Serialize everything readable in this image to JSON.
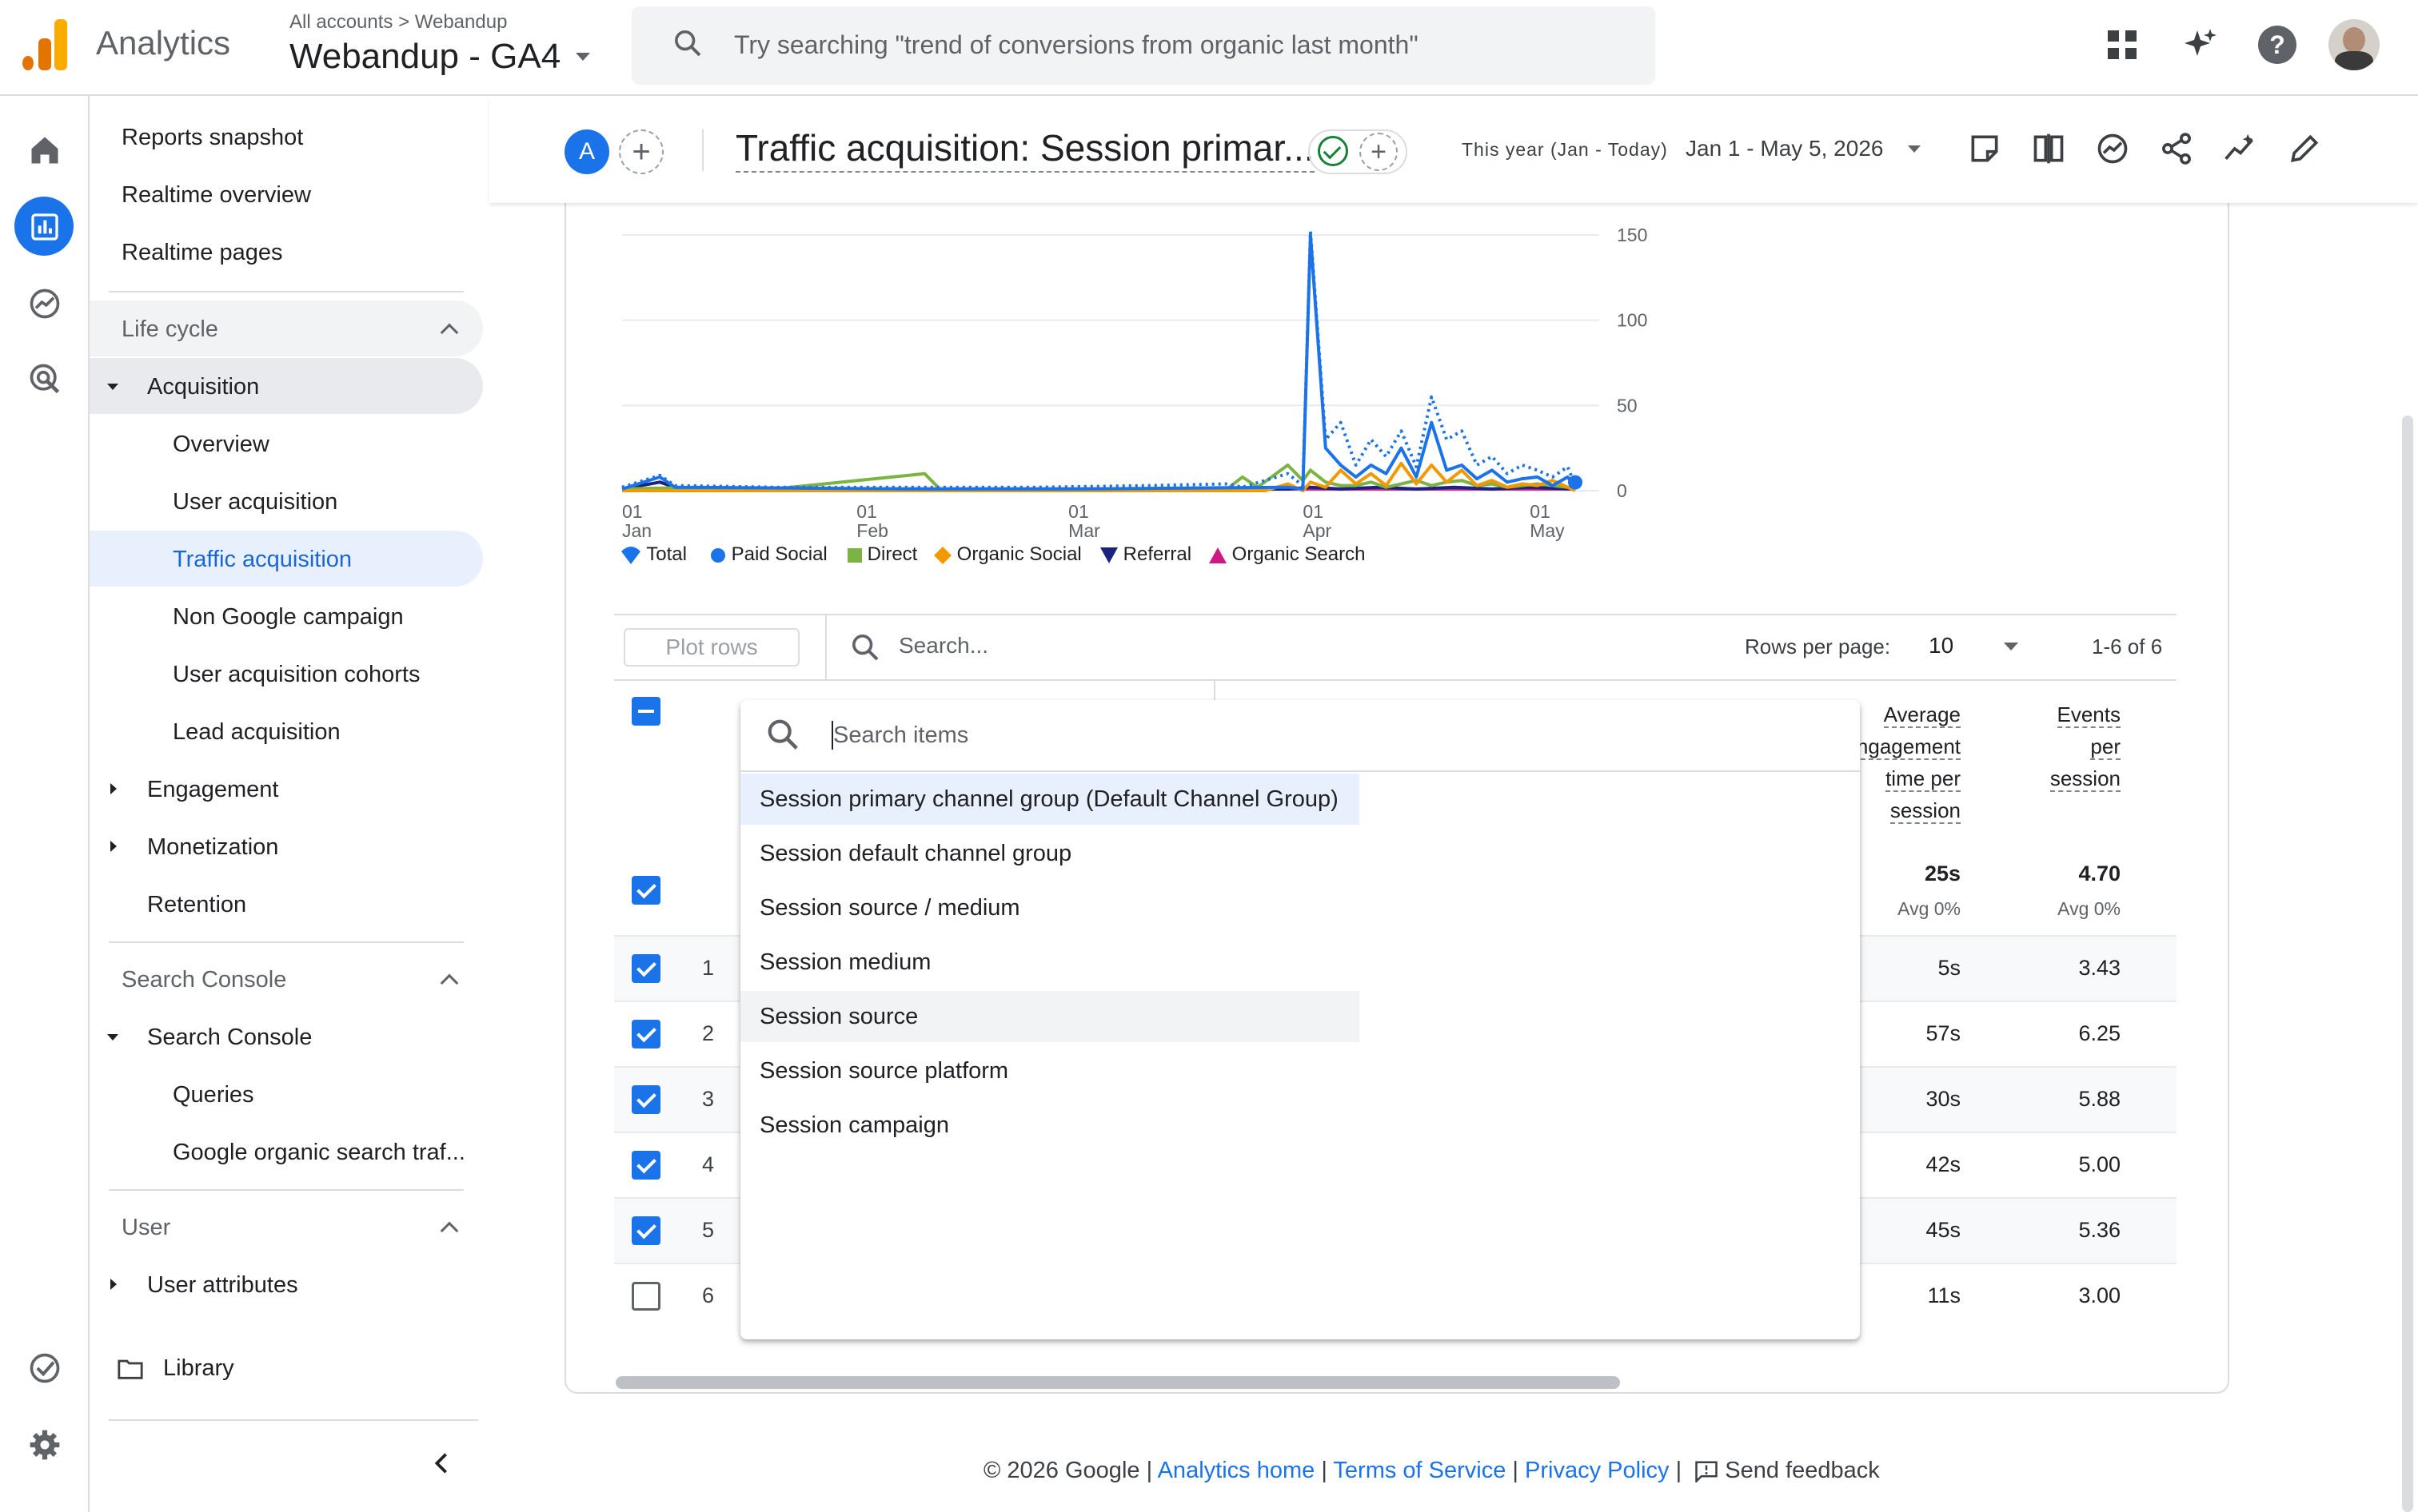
{
  "app": {
    "name": "Analytics",
    "breadcrumb_root": "All accounts",
    "breadcrumb_sep": ">",
    "breadcrumb_account": "Webandup",
    "property": "Webandup - GA4",
    "search_placeholder": "Try searching \"trend of conversions from organic last month\""
  },
  "topbar_icons": [
    "apps-grid-icon",
    "sparkle-icon",
    "help-icon",
    "account-avatar"
  ],
  "rail_icons": [
    "home-icon",
    "reports-icon",
    "explore-icon",
    "advertising-icon",
    "admin-check-icon",
    "settings-gear-icon"
  ],
  "nav": {
    "top_items": [
      "Reports snapshot",
      "Realtime overview",
      "Realtime pages"
    ],
    "lifecycle": {
      "label": "Life cycle",
      "acquisition": "Acquisition",
      "acquisition_children": [
        "Overview",
        "User acquisition",
        "Traffic acquisition",
        "Non Google campaign",
        "User acquisition cohorts",
        "Lead acquisition"
      ],
      "engagement": "Engagement",
      "monetization": "Monetization",
      "retention": "Retention"
    },
    "search_console": {
      "label": "Search Console",
      "group": "Search Console",
      "children": [
        "Queries",
        "Google organic search traf..."
      ]
    },
    "user": {
      "label": "User",
      "attributes": "User attributes"
    },
    "library": "Library"
  },
  "report": {
    "avatar_letter": "A",
    "title": "Traffic acquisition: Session primar...",
    "date_label": "This year (Jan - Today)",
    "date_range": "Jan 1 - May 5, 2026",
    "header_icons": [
      "customize-report-icon",
      "compare-icon",
      "insights-icon",
      "share-icon",
      "anomaly-icon",
      "edit-pencil-icon"
    ]
  },
  "chart_data": {
    "type": "line",
    "x_ticks": [
      {
        "day": "01",
        "month": "Jan"
      },
      {
        "day": "01",
        "month": "Feb"
      },
      {
        "day": "01",
        "month": "Mar"
      },
      {
        "day": "01",
        "month": "Apr"
      },
      {
        "day": "01",
        "month": "May"
      }
    ],
    "y_ticks": [
      "150",
      "100",
      "50",
      "0"
    ],
    "ylim": [
      0,
      150
    ],
    "x_start": "2026-01-01",
    "series": [
      {
        "name": "Total",
        "color": "#1a73e8",
        "style": "dotted",
        "marker": "balloon",
        "points": [
          [
            0,
            2
          ],
          [
            5,
            9
          ],
          [
            7,
            3
          ],
          [
            20,
            2
          ],
          [
            40,
            2
          ],
          [
            55,
            2
          ],
          [
            70,
            3
          ],
          [
            80,
            4
          ],
          [
            82,
            2
          ],
          [
            88,
            10
          ],
          [
            90,
            3
          ],
          [
            91,
            152
          ],
          [
            93,
            30
          ],
          [
            95,
            40
          ],
          [
            97,
            15
          ],
          [
            99,
            30
          ],
          [
            101,
            20
          ],
          [
            103,
            35
          ],
          [
            105,
            14
          ],
          [
            107,
            55
          ],
          [
            109,
            30
          ],
          [
            111,
            35
          ],
          [
            113,
            15
          ],
          [
            115,
            20
          ],
          [
            117,
            10
          ],
          [
            119,
            15
          ],
          [
            121,
            12
          ],
          [
            123,
            8
          ],
          [
            125,
            14
          ],
          [
            126,
            3
          ]
        ]
      },
      {
        "name": "Paid Social",
        "color": "#1a73e8",
        "style": "solid",
        "marker": "circle",
        "points": [
          [
            0,
            1
          ],
          [
            5,
            8
          ],
          [
            7,
            2
          ],
          [
            40,
            1
          ],
          [
            60,
            1
          ],
          [
            88,
            2
          ],
          [
            90,
            1
          ],
          [
            91,
            150
          ],
          [
            93,
            25
          ],
          [
            95,
            15
          ],
          [
            97,
            8
          ],
          [
            99,
            15
          ],
          [
            101,
            10
          ],
          [
            103,
            25
          ],
          [
            105,
            8
          ],
          [
            107,
            40
          ],
          [
            109,
            12
          ],
          [
            111,
            15
          ],
          [
            113,
            7
          ],
          [
            115,
            12
          ],
          [
            117,
            5
          ],
          [
            119,
            7
          ],
          [
            121,
            8
          ],
          [
            123,
            3
          ],
          [
            125,
            8
          ],
          [
            126,
            2
          ]
        ]
      },
      {
        "name": "Direct",
        "color": "#7cb342",
        "style": "solid",
        "marker": "square",
        "points": [
          [
            0,
            1
          ],
          [
            10,
            2
          ],
          [
            20,
            1
          ],
          [
            40,
            10
          ],
          [
            42,
            1
          ],
          [
            60,
            1
          ],
          [
            80,
            1
          ],
          [
            82,
            8
          ],
          [
            84,
            2
          ],
          [
            88,
            15
          ],
          [
            90,
            6
          ],
          [
            91,
            12
          ],
          [
            93,
            5
          ],
          [
            95,
            3
          ],
          [
            97,
            3
          ],
          [
            99,
            5
          ],
          [
            101,
            2
          ],
          [
            103,
            4
          ],
          [
            105,
            6
          ],
          [
            107,
            3
          ],
          [
            109,
            5
          ],
          [
            111,
            6
          ],
          [
            113,
            3
          ],
          [
            115,
            4
          ],
          [
            117,
            2
          ],
          [
            119,
            3
          ],
          [
            121,
            4
          ],
          [
            123,
            3
          ],
          [
            125,
            2
          ],
          [
            126,
            1
          ]
        ]
      },
      {
        "name": "Organic Social",
        "color": "#f29900",
        "style": "solid",
        "marker": "diamond",
        "points": [
          [
            0,
            0
          ],
          [
            60,
            0
          ],
          [
            85,
            0
          ],
          [
            88,
            4
          ],
          [
            90,
            0
          ],
          [
            91,
            5
          ],
          [
            93,
            2
          ],
          [
            95,
            12
          ],
          [
            97,
            4
          ],
          [
            99,
            10
          ],
          [
            101,
            3
          ],
          [
            103,
            16
          ],
          [
            105,
            4
          ],
          [
            107,
            15
          ],
          [
            109,
            5
          ],
          [
            111,
            12
          ],
          [
            113,
            3
          ],
          [
            115,
            6
          ],
          [
            117,
            2
          ],
          [
            119,
            4
          ],
          [
            121,
            3
          ],
          [
            123,
            6
          ],
          [
            125,
            2
          ],
          [
            126,
            0
          ]
        ]
      },
      {
        "name": "Referral",
        "color": "#1a237e",
        "style": "solid",
        "marker": "triangle-down",
        "points": [
          [
            0,
            1
          ],
          [
            5,
            5
          ],
          [
            7,
            2
          ],
          [
            20,
            1
          ],
          [
            40,
            1
          ],
          [
            60,
            1
          ],
          [
            80,
            1
          ],
          [
            88,
            1
          ],
          [
            91,
            2
          ],
          [
            95,
            1
          ],
          [
            100,
            2
          ],
          [
            105,
            1
          ],
          [
            110,
            2
          ],
          [
            115,
            1
          ],
          [
            120,
            2
          ],
          [
            126,
            1
          ]
        ]
      },
      {
        "name": "Organic Search",
        "color": "#d01884",
        "style": "solid",
        "marker": "triangle-up",
        "points": [
          [
            0,
            1
          ],
          [
            20,
            1
          ],
          [
            40,
            1
          ],
          [
            60,
            1
          ],
          [
            80,
            1
          ],
          [
            95,
            1
          ],
          [
            110,
            1
          ],
          [
            126,
            1
          ]
        ]
      }
    ]
  },
  "table": {
    "plot_rows": "Plot rows",
    "search_placeholder": "Search...",
    "rows_per_page_label": "Rows per page:",
    "rows_per_page": "10",
    "page_info": "1-6 of 6",
    "columns": [
      {
        "lines": [
          "Average",
          "engagement",
          "time per",
          "session"
        ]
      },
      {
        "lines": [
          "Events",
          "per",
          "session"
        ]
      }
    ],
    "totals": [
      {
        "value": "25s",
        "sub": "Avg 0%"
      },
      {
        "value": "4.70",
        "sub": "Avg 0%"
      }
    ],
    "rows": [
      {
        "num": "1",
        "checked": true,
        "c1": "5s",
        "c2": "3.43"
      },
      {
        "num": "2",
        "checked": true,
        "c1": "57s",
        "c2": "6.25"
      },
      {
        "num": "3",
        "checked": true,
        "c1": "30s",
        "c2": "5.88"
      },
      {
        "num": "4",
        "checked": true,
        "c1": "42s",
        "c2": "5.00"
      },
      {
        "num": "5",
        "checked": true,
        "c1": "45s",
        "c2": "5.36"
      },
      {
        "num": "6",
        "checked": false,
        "c1": "11s",
        "c2": "3.00"
      }
    ]
  },
  "dropdown": {
    "search_placeholder": "Search items",
    "items": [
      {
        "label": "Session primary channel group (Default Channel Group)",
        "state": "selected"
      },
      {
        "label": "Session default channel group",
        "state": ""
      },
      {
        "label": "Session source / medium",
        "state": ""
      },
      {
        "label": "Session medium",
        "state": ""
      },
      {
        "label": "Session source",
        "state": "hover"
      },
      {
        "label": "Session source platform",
        "state": ""
      },
      {
        "label": "Session campaign",
        "state": ""
      }
    ]
  },
  "footer": {
    "copyright": "© 2026 Google",
    "sep": "|",
    "links": [
      "Analytics home",
      "Terms of Service",
      "Privacy Policy"
    ],
    "feedback": "Send feedback"
  },
  "colors": {
    "accent": "#1a73e8",
    "nav_active_bg": "#e8f0fe",
    "nav_section_bg": "#f1f3f4"
  }
}
